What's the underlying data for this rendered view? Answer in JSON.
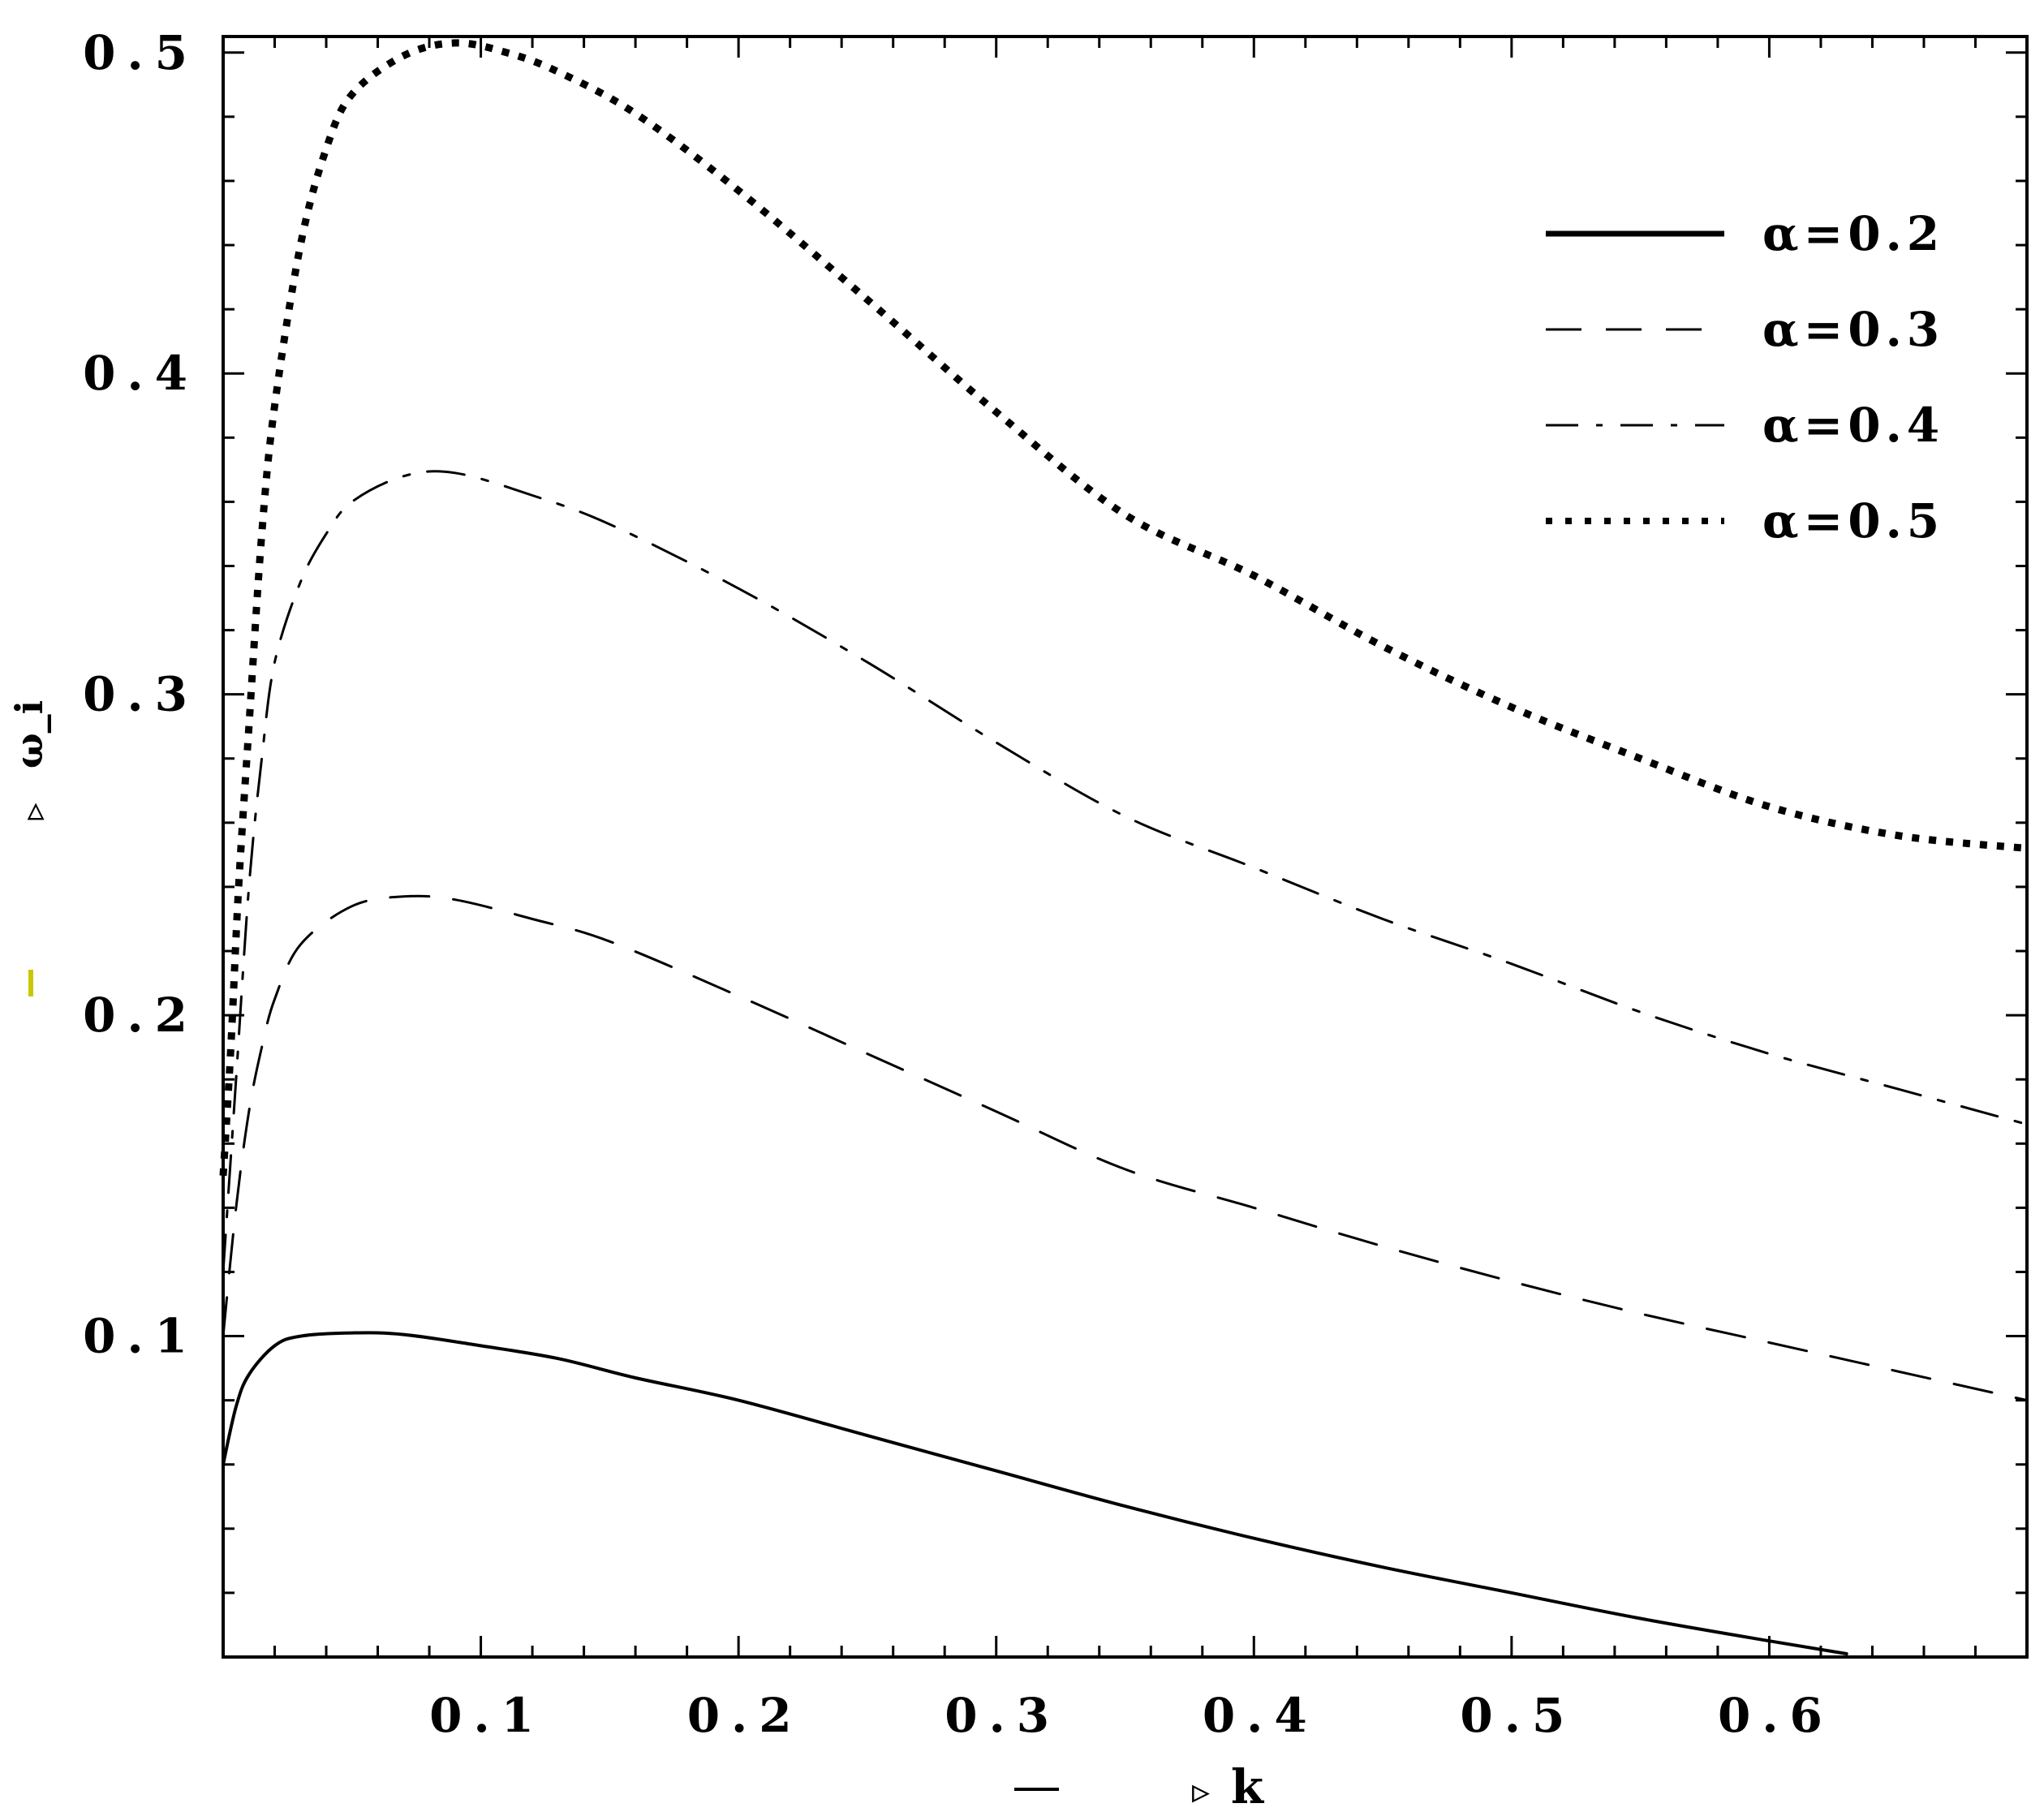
{
  "chart_data": {
    "type": "line",
    "title": "",
    "xlabel": "k",
    "ylabel": "ω_i",
    "xlabel_prefix": "▹",
    "ylabel_prefix": "▹",
    "xlim": [
      0,
      0.7
    ],
    "ylim": [
      0,
      0.505
    ],
    "grid": false,
    "legend_position": "top-right",
    "x_ticks": [
      0.1,
      0.2,
      0.3,
      0.4,
      0.5,
      0.6
    ],
    "x_tick_labels": [
      "0.1",
      "0.2",
      "0.3",
      "0.4",
      "0.5",
      "0.6"
    ],
    "y_ticks": [
      0.1,
      0.2,
      0.3,
      0.4,
      0.5
    ],
    "y_tick_labels": [
      "0.1",
      "0.2",
      "0.3",
      "0.4",
      "0.5"
    ],
    "series": [
      {
        "name": "α=0.2",
        "style": "solid",
        "x": [
          0.0,
          0.005,
          0.01,
          0.02,
          0.03,
          0.05,
          0.07,
          0.1,
          0.13,
          0.16,
          0.2,
          0.25,
          0.3,
          0.35,
          0.4,
          0.45,
          0.5,
          0.55,
          0.6,
          0.63
        ],
        "y": [
          0.06,
          0.078,
          0.088,
          0.097,
          0.1,
          0.101,
          0.1005,
          0.097,
          0.093,
          0.087,
          0.08,
          0.069,
          0.058,
          0.047,
          0.037,
          0.028,
          0.02,
          0.012,
          0.005,
          0.001
        ]
      },
      {
        "name": "α=0.3",
        "style": "dashed",
        "x": [
          0.0,
          0.005,
          0.01,
          0.015,
          0.02,
          0.03,
          0.05,
          0.07,
          0.09,
          0.12,
          0.15,
          0.2,
          0.25,
          0.3,
          0.35,
          0.4,
          0.45,
          0.5,
          0.55,
          0.6,
          0.65,
          0.7
        ],
        "y": [
          0.1,
          0.14,
          0.17,
          0.19,
          0.205,
          0.222,
          0.234,
          0.237,
          0.236,
          0.23,
          0.223,
          0.206,
          0.188,
          0.17,
          0.152,
          0.14,
          0.128,
          0.117,
          0.107,
          0.098,
          0.089,
          0.08
        ]
      },
      {
        "name": "α=0.4",
        "style": "dashdot",
        "x": [
          0.0,
          0.005,
          0.01,
          0.015,
          0.02,
          0.03,
          0.04,
          0.05,
          0.07,
          0.09,
          0.12,
          0.15,
          0.2,
          0.25,
          0.3,
          0.35,
          0.4,
          0.45,
          0.5,
          0.55,
          0.6,
          0.65,
          0.7
        ],
        "y": [
          0.12,
          0.18,
          0.24,
          0.28,
          0.31,
          0.335,
          0.35,
          0.36,
          0.368,
          0.369,
          0.362,
          0.353,
          0.333,
          0.31,
          0.285,
          0.262,
          0.246,
          0.23,
          0.216,
          0.201,
          0.188,
          0.177,
          0.166
        ]
      },
      {
        "name": "α=0.5",
        "style": "dotted",
        "x": [
          0.0,
          0.003,
          0.006,
          0.01,
          0.015,
          0.02,
          0.03,
          0.04,
          0.05,
          0.07,
          0.09,
          0.11,
          0.13,
          0.16,
          0.2,
          0.25,
          0.3,
          0.35,
          0.4,
          0.45,
          0.5,
          0.55,
          0.6,
          0.65,
          0.7
        ],
        "y": [
          0.15,
          0.19,
          0.24,
          0.29,
          0.35,
          0.39,
          0.44,
          0.47,
          0.487,
          0.499,
          0.503,
          0.5,
          0.494,
          0.481,
          0.457,
          0.423,
          0.388,
          0.356,
          0.337,
          0.315,
          0.296,
          0.28,
          0.265,
          0.256,
          0.252
        ]
      }
    ]
  }
}
